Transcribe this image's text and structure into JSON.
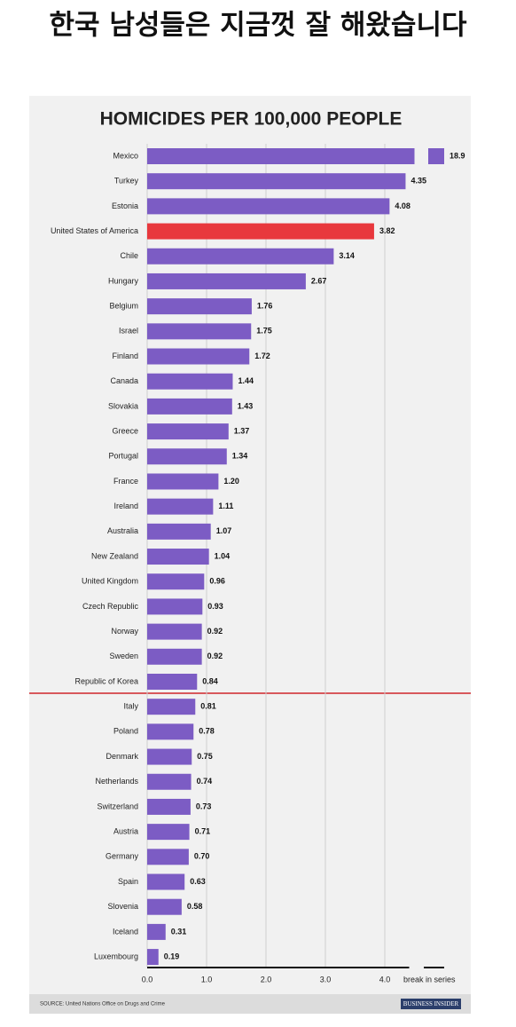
{
  "header": "한국 남성들은 지금껏 잘 해왔습니다",
  "chart_data": {
    "type": "hbar",
    "title": "HOMICIDES PER 100,000 PEOPLE",
    "categories": [
      "Mexico",
      "Turkey",
      "Estonia",
      "United States of America",
      "Chile",
      "Hungary",
      "Belgium",
      "Israel",
      "Finland",
      "Canada",
      "Slovakia",
      "Greece",
      "Portugal",
      "France",
      "Ireland",
      "Australia",
      "New Zealand",
      "United Kingdom",
      "Czech Republic",
      "Norway",
      "Sweden",
      "Republic of Korea",
      "Italy",
      "Poland",
      "Denmark",
      "Netherlands",
      "Switzerland",
      "Austria",
      "Germany",
      "Spain",
      "Slovenia",
      "Iceland",
      "Luxembourg"
    ],
    "values": [
      18.9,
      4.35,
      4.08,
      3.82,
      3.14,
      2.67,
      1.76,
      1.75,
      1.72,
      1.44,
      1.43,
      1.37,
      1.34,
      1.2,
      1.11,
      1.07,
      1.04,
      0.96,
      0.93,
      0.92,
      0.92,
      0.84,
      0.81,
      0.78,
      0.75,
      0.74,
      0.73,
      0.71,
      0.7,
      0.63,
      0.58,
      0.31,
      0.19
    ],
    "value_labels": [
      "18.9",
      "4.35",
      "4.08",
      "3.82",
      "3.14",
      "2.67",
      "1.76",
      "1.75",
      "1.72",
      "1.44",
      "1.43",
      "1.37",
      "1.34",
      "1.20",
      "1.11",
      "1.07",
      "1.04",
      "0.96",
      "0.93",
      "0.92",
      "0.92",
      "0.84",
      "0.81",
      "0.78",
      "0.75",
      "0.74",
      "0.73",
      "0.71",
      "0.70",
      "0.63",
      "0.58",
      "0.31",
      "0.19"
    ],
    "color": "#7c5cc4",
    "highlight": {
      "index": 3,
      "color": "#e8383d"
    },
    "xlim": [
      0,
      4.5
    ],
    "xticks": [
      {
        "value": 0,
        "label": "0.0"
      },
      {
        "value": 1,
        "label": "1.0"
      },
      {
        "value": 2,
        "label": "2.0"
      },
      {
        "value": 3,
        "label": "3.0"
      },
      {
        "value": 4,
        "label": "4.0"
      }
    ],
    "grid": true,
    "break_label": "break in series",
    "source": "SOURCE: United Nations Office on Drugs and Crime",
    "brand": "BUSINESS INSIDER"
  }
}
